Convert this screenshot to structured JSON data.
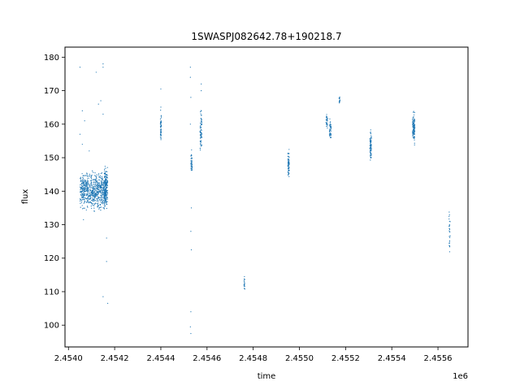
{
  "chart_data": {
    "type": "scatter",
    "title": "1SWASPJ082642.78+190218.7",
    "xlabel": "time",
    "ylabel": "flux",
    "x_offset_label": "1e6",
    "xlim": [
      2453985,
      2455730
    ],
    "ylim": [
      93.5,
      183
    ],
    "x_ticks": [
      2454000,
      2454200,
      2454400,
      2454600,
      2454800,
      2455000,
      2455200,
      2455400,
      2455600
    ],
    "x_tick_labels": [
      "2.4540",
      "2.4542",
      "2.4544",
      "2.4546",
      "2.4548",
      "2.4550",
      "2.4552",
      "2.4554",
      "2.4556"
    ],
    "y_ticks": [
      100,
      110,
      120,
      130,
      140,
      150,
      160,
      170,
      180
    ],
    "y_tick_labels": [
      "100",
      "110",
      "120",
      "130",
      "140",
      "150",
      "160",
      "170",
      "180"
    ],
    "grid": false,
    "point_color": "#1f77b4",
    "series": [
      {
        "clusters": [
          {
            "x": [
              2454050,
              2454165
            ],
            "y": [
              133,
              147
            ],
            "count": 700
          },
          {
            "x": [
              2454155,
              2454170
            ],
            "y": [
              132,
              150
            ],
            "count": 160
          },
          {
            "x": [
              2454398,
              2454402
            ],
            "y": [
              152,
              166
            ],
            "count": 50
          },
          {
            "x": [
              2454530,
              2454536
            ],
            "y": [
              144,
              153
            ],
            "count": 40
          },
          {
            "x": [
              2454570,
              2454578
            ],
            "y": [
              150,
              166
            ],
            "count": 70
          },
          {
            "x": [
              2454760,
              2454764
            ],
            "y": [
              109.5,
              116
            ],
            "count": 20
          },
          {
            "x": [
              2454950,
              2454956
            ],
            "y": [
              142,
              155
            ],
            "count": 60
          },
          {
            "x": [
              2455115,
              2455122
            ],
            "y": [
              158,
              164
            ],
            "count": 30
          },
          {
            "x": [
              2455130,
              2455138
            ],
            "y": [
              153,
              163
            ],
            "count": 40
          },
          {
            "x": [
              2455172,
              2455176
            ],
            "y": [
              165,
              169
            ],
            "count": 15
          },
          {
            "x": [
              2455305,
              2455312
            ],
            "y": [
              147,
              160
            ],
            "count": 70
          },
          {
            "x": [
              2455490,
              2455500
            ],
            "y": [
              153,
              165
            ],
            "count": 110
          },
          {
            "x": [
              2455648,
              2455653
            ],
            "y": [
              118,
              139
            ],
            "count": 25
          }
        ],
        "points": [
          [
            2454050,
            177
          ],
          [
            2454120,
            175.5
          ],
          [
            2454150,
            178
          ],
          [
            2454150,
            177
          ],
          [
            2454130,
            166
          ],
          [
            2454140,
            167
          ],
          [
            2454060,
            164
          ],
          [
            2454070,
            161
          ],
          [
            2454150,
            163
          ],
          [
            2454050,
            157
          ],
          [
            2454060,
            154
          ],
          [
            2454090,
            152
          ],
          [
            2454150,
            108.5
          ],
          [
            2454170,
            106.5
          ],
          [
            2454165,
            119
          ],
          [
            2454165,
            126
          ],
          [
            2454065,
            131.5
          ],
          [
            2454528,
            177
          ],
          [
            2454528,
            174
          ],
          [
            2454530,
            168
          ],
          [
            2454528,
            160
          ],
          [
            2454532,
            135
          ],
          [
            2454530,
            128
          ],
          [
            2454532,
            122.5
          ],
          [
            2454530,
            104
          ],
          [
            2454528,
            99.5
          ],
          [
            2454530,
            97.5
          ],
          [
            2454575,
            172
          ],
          [
            2454575,
            170
          ],
          [
            2454400,
            170.5
          ],
          [
            2455650,
            131
          ],
          [
            2455650,
            130
          ]
        ]
      }
    ]
  }
}
